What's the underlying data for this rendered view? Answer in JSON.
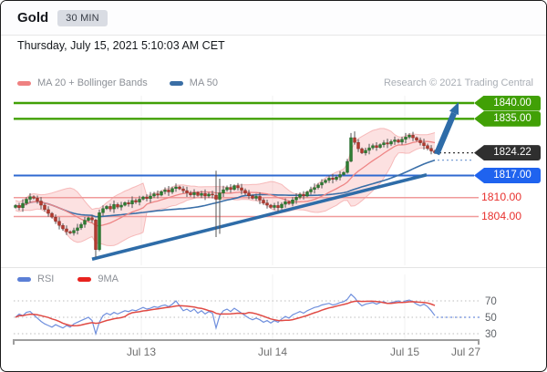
{
  "header": {
    "title": "Gold",
    "timeframe": "30 MIN",
    "datetime": "Thursday, July 15, 2021 5:10:03 AM CET"
  },
  "branding": {
    "copyright": "Research © 2021 Trading Central"
  },
  "legend_main": {
    "items": [
      {
        "label": "MA 20 + Bollinger Bands",
        "color": "#ef8181"
      },
      {
        "label": "MA 50",
        "color": "#3a6ea5"
      }
    ]
  },
  "legend_rsi": {
    "items": [
      {
        "label": "RSI",
        "color": "#5b7fd6"
      },
      {
        "label": "9MA",
        "color": "#e8231f"
      }
    ]
  },
  "x_axis": {
    "labels": [
      {
        "text": "Jul 13"
      },
      {
        "text": "Jul 14"
      },
      {
        "text": "Jul 15"
      },
      {
        "text": "Jul 27"
      }
    ]
  },
  "chart_data": [
    {
      "type": "candlestick",
      "title": "Gold 30 MIN with MA20/Bollinger Bands and MA50",
      "symbol": "Gold",
      "interval": "30 MIN",
      "ylim": [
        1790,
        1842
      ],
      "levels": [
        {
          "label": "1840.00",
          "value": 1840.0,
          "role": "resistance",
          "color": "#41a006"
        },
        {
          "label": "1835.00",
          "value": 1835.0,
          "role": "resistance",
          "color": "#41a006"
        },
        {
          "label": "1824.22",
          "value": 1824.22,
          "role": "last_price",
          "color": "#2f2f2f"
        },
        {
          "label": "1817.00",
          "value": 1817.0,
          "role": "pivot",
          "color": "#1f63ef"
        },
        {
          "label": "1810.00",
          "value": 1810.0,
          "role": "support",
          "color": "#e8312e"
        },
        {
          "label": "1804.00",
          "value": 1804.0,
          "role": "support",
          "color": "#e8312e"
        }
      ],
      "first_open": 1806.9,
      "closes": [
        1807.5,
        1806.8,
        1808.2,
        1809.5,
        1810.3,
        1809.8,
        1808.9,
        1807.6,
        1806.2,
        1805.0,
        1803.8,
        1802.5,
        1801.2,
        1800.1,
        1799.2,
        1798.8,
        1799.6,
        1800.4,
        1801.5,
        1802.8,
        1803.6,
        1802.9,
        1793.5,
        1805.2,
        1806.5,
        1807.2,
        1806.4,
        1807.8,
        1807.0,
        1807.6,
        1808.4,
        1808.0,
        1809.1,
        1808.6,
        1809.5,
        1810.2,
        1809.7,
        1810.5,
        1811.2,
        1810.8,
        1811.9,
        1812.4,
        1811.8,
        1812.9,
        1813.4,
        1812.8,
        1812.2,
        1811.5,
        1810.9,
        1811.6,
        1810.7,
        1811.3,
        1810.5,
        1811.1,
        1810.8,
        1809.5,
        1811.5,
        1812.5,
        1813.2,
        1812.6,
        1813.8,
        1813.1,
        1812.3,
        1811.4,
        1810.6,
        1809.8,
        1810.4,
        1809.2,
        1808.3,
        1807.6,
        1806.9,
        1807.5,
        1806.8,
        1807.9,
        1808.7,
        1808.1,
        1809.3,
        1810.1,
        1811.0,
        1810.5,
        1811.8,
        1812.6,
        1813.2,
        1814.0,
        1814.8,
        1815.5,
        1816.2,
        1815.8,
        1816.5,
        1817.3,
        1818.0,
        1821.5,
        1829.0,
        1827.5,
        1825.5,
        1824.2,
        1825.0,
        1825.8,
        1826.5,
        1825.9,
        1826.8,
        1827.4,
        1827.0,
        1827.8,
        1828.3,
        1827.6,
        1828.5,
        1829.2,
        1829.8,
        1829.0,
        1828.2,
        1827.4,
        1826.5,
        1825.6,
        1824.8,
        1824.22
      ],
      "overrides": {
        "22": [
          1802.9,
          1803.3,
          1791.0,
          1793.5
        ],
        "23": [
          1793.5,
          1806.2,
          1793.0,
          1805.2
        ],
        "55": [
          1810.8,
          1818.5,
          1797.5,
          1809.5
        ],
        "56": [
          1809.5,
          1816.0,
          1798.5,
          1811.5
        ],
        "91": [
          1818.0,
          1822.3,
          1817.6,
          1821.5
        ],
        "92": [
          1821.5,
          1830.5,
          1821.2,
          1829.0
        ],
        "93": [
          1829.0,
          1831.0,
          1826.8,
          1827.5
        ]
      },
      "overlays": {
        "ma20_window": 14,
        "ma50_window": 40,
        "bollinger_window": 14,
        "bollinger_k": 2
      },
      "trendline": {
        "price_start": 1790.5,
        "price_end": 1817.2,
        "direction": "up"
      },
      "forecast_arrow": {
        "from_price": 1823.8,
        "to_price": 1840.0
      },
      "colors": {
        "up": "#2e7d32",
        "down": "#b33a2e",
        "wick": "#555555",
        "ma20": "#ee8585",
        "ma50": "#3a6fa8",
        "band_fill": "rgba(246,170,170,0.35)",
        "band_edge": "rgba(242,150,150,0.6)",
        "trend": "#2e6ca8",
        "last_dotted": "#333333",
        "ma50_dotted": "#7aa0d4"
      }
    },
    {
      "type": "line",
      "title": "RSI with 9MA",
      "ylim": [
        20,
        90
      ],
      "ticks": [
        {
          "label": "70",
          "value": 70
        },
        {
          "label": "50",
          "value": 50
        },
        {
          "label": "30",
          "value": 30
        }
      ],
      "rsi": [
        50,
        54,
        52,
        56,
        57,
        53,
        49,
        45,
        42,
        40,
        38,
        41,
        39,
        37,
        40,
        38,
        42,
        44,
        46,
        48,
        50,
        46,
        30,
        44,
        52,
        55,
        53,
        56,
        54,
        56,
        58,
        57,
        59,
        58,
        60,
        62,
        60,
        61,
        63,
        62,
        64,
        65,
        63,
        66,
        70,
        64,
        58,
        60,
        57,
        60,
        55,
        58,
        54,
        57,
        55,
        37,
        52,
        58,
        60,
        57,
        61,
        58,
        55,
        52,
        49,
        47,
        49,
        47,
        44,
        46,
        43,
        46,
        44,
        48,
        51,
        49,
        53,
        55,
        57,
        55,
        58,
        60,
        62,
        63,
        65,
        66,
        67,
        65,
        66,
        68,
        69,
        72,
        78,
        74,
        68,
        64,
        66,
        67,
        68,
        66,
        68,
        69,
        67,
        68,
        69,
        70,
        68,
        70,
        71,
        69,
        66,
        64,
        66,
        63,
        58,
        52
      ],
      "ma_window": 9,
      "forecast_value": 50,
      "colors": {
        "rsi": "#6f8fdd",
        "ma": "#e04a44",
        "grid": "#bdbdbd",
        "axis": "#9e9e9e"
      }
    }
  ]
}
